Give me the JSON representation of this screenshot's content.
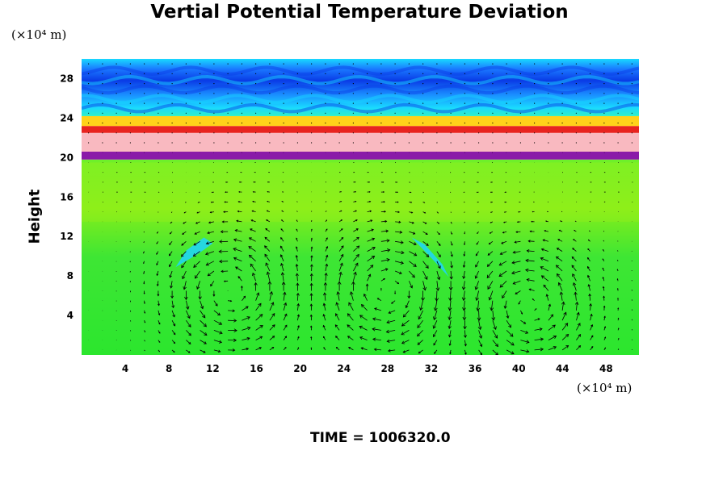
{
  "chart_data": {
    "type": "heatmap",
    "title": "Vertial Potential Temperature Deviation",
    "ylabel": "Height",
    "xlabel": "",
    "y_unit": "(×10⁴ m)",
    "x_unit": "(×10⁴ m)",
    "footer": "TIME = 1006320.0",
    "xlim": [
      0,
      51
    ],
    "ylim": [
      0,
      30
    ],
    "x_ticks": [
      "4",
      "8",
      "12",
      "16",
      "20",
      "24",
      "28",
      "32",
      "36",
      "40",
      "44",
      "48"
    ],
    "y_ticks": [
      "4",
      "8",
      "12",
      "16",
      "20",
      "24",
      "28"
    ],
    "overlay": "wind vectors",
    "layers": [
      {
        "y_from": 0,
        "y_to": 19.8,
        "color": "#2ee62e",
        "label": "lower field"
      },
      {
        "y_from": 19.8,
        "y_to": 20.6,
        "color": "#8a1aa8",
        "label": "dark band"
      },
      {
        "y_from": 20.6,
        "y_to": 22.5,
        "color": "#f9b9c0",
        "label": "pink band"
      },
      {
        "y_from": 22.5,
        "y_to": 23.2,
        "color": "#e8231f",
        "label": "red band"
      },
      {
        "y_from": 23.2,
        "y_to": 24.2,
        "color": "#ffd21a",
        "label": "yellow band"
      },
      {
        "y_from": 24.2,
        "y_to": 30,
        "color": "#1fb4ff",
        "label": "upper field"
      }
    ],
    "colors": {
      "upper_dark": "#0a3be6",
      "upper_light": "#19d9ff",
      "lower_light": "#9ef01a",
      "cold_patch": "#1fd3ff",
      "arrow": "#000000"
    }
  }
}
